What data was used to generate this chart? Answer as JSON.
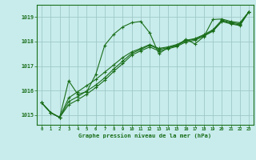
{
  "title": "Graphe pression niveau de la mer (hPa)",
  "bg_color": "#c8ecec",
  "grid_color": "#a0c8c8",
  "line_color": "#1a6e1a",
  "xlim": [
    -0.5,
    23.5
  ],
  "ylim": [
    1014.6,
    1019.5
  ],
  "yticks": [
    1015,
    1016,
    1017,
    1018,
    1019
  ],
  "xticks": [
    0,
    1,
    2,
    3,
    4,
    5,
    6,
    7,
    8,
    9,
    10,
    11,
    12,
    13,
    14,
    15,
    16,
    17,
    18,
    19,
    20,
    21,
    22,
    23
  ],
  "series1": [
    1015.5,
    1015.1,
    1014.9,
    1016.4,
    1015.85,
    1015.95,
    1016.65,
    1017.85,
    1018.3,
    1018.6,
    1018.77,
    1018.82,
    1018.35,
    1017.5,
    1017.75,
    1017.82,
    1018.1,
    1017.9,
    1018.2,
    1018.9,
    1018.92,
    1018.82,
    1018.77,
    1019.22
  ],
  "series2": [
    1015.5,
    1015.1,
    1014.9,
    1015.7,
    1015.95,
    1016.2,
    1016.45,
    1016.75,
    1017.05,
    1017.35,
    1017.58,
    1017.72,
    1017.88,
    1017.72,
    1017.78,
    1017.88,
    1018.05,
    1018.12,
    1018.28,
    1018.48,
    1018.88,
    1018.78,
    1018.72,
    1019.22
  ],
  "series3": [
    1015.5,
    1015.1,
    1014.9,
    1015.55,
    1015.75,
    1015.98,
    1016.22,
    1016.52,
    1016.88,
    1017.2,
    1017.52,
    1017.68,
    1017.85,
    1017.68,
    1017.75,
    1017.85,
    1018.02,
    1018.1,
    1018.25,
    1018.45,
    1018.85,
    1018.75,
    1018.68,
    1019.22
  ],
  "series4": [
    1015.5,
    1015.1,
    1014.9,
    1015.42,
    1015.62,
    1015.85,
    1016.12,
    1016.42,
    1016.78,
    1017.1,
    1017.45,
    1017.62,
    1017.78,
    1017.62,
    1017.7,
    1017.8,
    1017.98,
    1018.05,
    1018.22,
    1018.42,
    1018.82,
    1018.72,
    1018.65,
    1019.22
  ]
}
